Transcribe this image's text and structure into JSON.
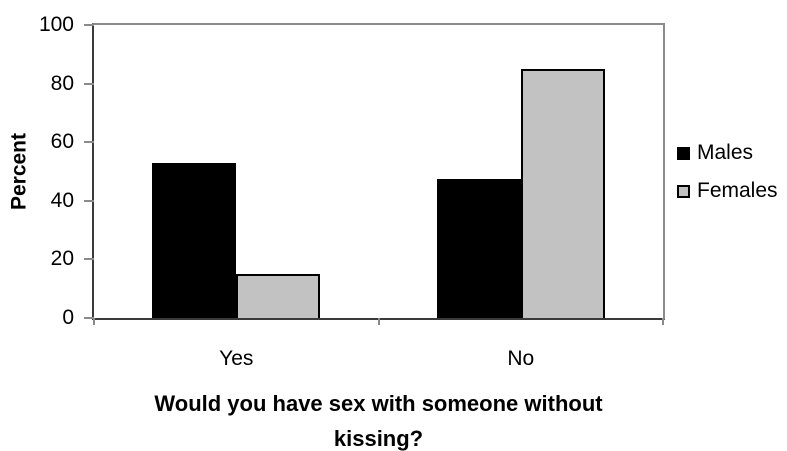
{
  "chart_data": {
    "type": "bar",
    "title": "",
    "xlabel": "Would you have sex with someone without kissing?",
    "xlabel_lines": [
      "Would you have sex with someone without",
      "kissing?"
    ],
    "ylabel": "Percent",
    "categories": [
      "Yes",
      "No"
    ],
    "series": [
      {
        "name": "Males",
        "fill": "#000000",
        "border": "#000000",
        "outlined": false,
        "values": [
          53,
          47.5
        ]
      },
      {
        "name": "Females",
        "fill": "#c2c2c2",
        "border": "#000000",
        "outlined": true,
        "values": [
          15,
          85
        ]
      }
    ],
    "ylim": [
      0,
      100
    ],
    "yticks": [
      0,
      20,
      40,
      60,
      80,
      100
    ],
    "grid": false,
    "legend_position": "right"
  },
  "colors": {
    "bar_males": "#000000",
    "bar_females": "#c2c2c2",
    "axis_dark": "#3a3a3a",
    "frame_gray": "#8c8c8c",
    "tick_gray": "#8a8a8a",
    "background": "#ffffff"
  }
}
